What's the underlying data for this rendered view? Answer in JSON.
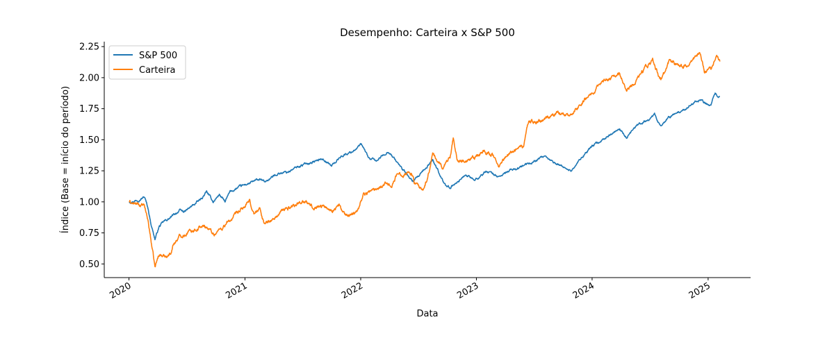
{
  "chart_data": {
    "type": "line",
    "title": "Desempenho: Carteira x S&P 500",
    "xlabel": "Data",
    "ylabel": "Índice (Base = início do período)",
    "xlim": [
      "2019-10-15",
      "2025-05-15"
    ],
    "ylim": [
      0.39,
      2.29
    ],
    "x_ticks": [
      "2020-01-01",
      "2021-01-01",
      "2022-01-01",
      "2023-01-01",
      "2024-01-01",
      "2025-01-01"
    ],
    "x_tick_labels": [
      "2020",
      "2021",
      "2022",
      "2023",
      "2024",
      "2025"
    ],
    "y_ticks": [
      0.5,
      0.75,
      1.0,
      1.25,
      1.5,
      1.75,
      2.0,
      2.25
    ],
    "y_tick_labels": [
      "0.50",
      "0.75",
      "1.00",
      "1.25",
      "1.50",
      "1.75",
      "2.00",
      "2.25"
    ],
    "grid": false,
    "legend_position": "top-left",
    "series": [
      {
        "name": "S&P 500",
        "color": "#1f77b4",
        "points": [
          [
            "2020-01-02",
            1.0
          ],
          [
            "2020-01-20",
            1.01
          ],
          [
            "2020-02-10",
            1.03
          ],
          [
            "2020-02-19",
            1.04
          ],
          [
            "2020-03-01",
            0.95
          ],
          [
            "2020-03-10",
            0.83
          ],
          [
            "2020-03-23",
            0.7
          ],
          [
            "2020-04-05",
            0.8
          ],
          [
            "2020-04-20",
            0.84
          ],
          [
            "2020-05-10",
            0.87
          ],
          [
            "2020-06-08",
            0.93
          ],
          [
            "2020-06-25",
            0.92
          ],
          [
            "2020-07-20",
            0.97
          ],
          [
            "2020-08-15",
            1.02
          ],
          [
            "2020-09-02",
            1.08
          ],
          [
            "2020-09-23",
            1.0
          ],
          [
            "2020-10-12",
            1.06
          ],
          [
            "2020-10-30",
            1.0
          ],
          [
            "2020-11-15",
            1.08
          ],
          [
            "2020-12-15",
            1.12
          ],
          [
            "2021-01-15",
            1.15
          ],
          [
            "2021-02-15",
            1.18
          ],
          [
            "2021-03-05",
            1.16
          ],
          [
            "2021-04-15",
            1.23
          ],
          [
            "2021-05-15",
            1.24
          ],
          [
            "2021-06-15",
            1.28
          ],
          [
            "2021-07-15",
            1.31
          ],
          [
            "2021-08-15",
            1.33
          ],
          [
            "2021-09-02",
            1.35
          ],
          [
            "2021-10-01",
            1.29
          ],
          [
            "2021-11-01",
            1.37
          ],
          [
            "2021-12-01",
            1.4
          ],
          [
            "2022-01-03",
            1.46
          ],
          [
            "2022-01-27",
            1.35
          ],
          [
            "2022-02-20",
            1.33
          ],
          [
            "2022-03-29",
            1.41
          ],
          [
            "2022-05-20",
            1.24
          ],
          [
            "2022-06-16",
            1.16
          ],
          [
            "2022-07-20",
            1.25
          ],
          [
            "2022-08-16",
            1.34
          ],
          [
            "2022-09-30",
            1.11
          ],
          [
            "2022-10-12",
            1.12
          ],
          [
            "2022-11-30",
            1.22
          ],
          [
            "2022-12-28",
            1.17
          ],
          [
            "2023-02-02",
            1.25
          ],
          [
            "2023-03-13",
            1.2
          ],
          [
            "2023-04-15",
            1.25
          ],
          [
            "2023-06-01",
            1.29
          ],
          [
            "2023-07-31",
            1.36
          ],
          [
            "2023-08-31",
            1.32
          ],
          [
            "2023-10-27",
            1.25
          ],
          [
            "2023-11-30",
            1.36
          ],
          [
            "2023-12-29",
            1.44
          ],
          [
            "2024-02-15",
            1.52
          ],
          [
            "2024-03-28",
            1.58
          ],
          [
            "2024-04-19",
            1.51
          ],
          [
            "2024-05-20",
            1.61
          ],
          [
            "2024-07-16",
            1.7
          ],
          [
            "2024-08-05",
            1.6
          ],
          [
            "2024-08-30",
            1.68
          ],
          [
            "2024-10-15",
            1.74
          ],
          [
            "2024-12-06",
            1.83
          ],
          [
            "2024-12-20",
            1.8
          ],
          [
            "2025-01-10",
            1.78
          ],
          [
            "2025-01-23",
            1.87
          ],
          [
            "2025-02-07",
            1.85
          ]
        ]
      },
      {
        "name": "Carteira",
        "color": "#ff7f0e",
        "points": [
          [
            "2020-01-02",
            1.0
          ],
          [
            "2020-01-20",
            0.98
          ],
          [
            "2020-02-10",
            0.97
          ],
          [
            "2020-02-19",
            0.96
          ],
          [
            "2020-03-01",
            0.85
          ],
          [
            "2020-03-10",
            0.7
          ],
          [
            "2020-03-23",
            0.47
          ],
          [
            "2020-04-05",
            0.58
          ],
          [
            "2020-04-20",
            0.56
          ],
          [
            "2020-05-10",
            0.58
          ],
          [
            "2020-05-20",
            0.66
          ],
          [
            "2020-06-08",
            0.72
          ],
          [
            "2020-07-15",
            0.77
          ],
          [
            "2020-08-15",
            0.8
          ],
          [
            "2020-09-02",
            0.8
          ],
          [
            "2020-09-25",
            0.74
          ],
          [
            "2020-10-20",
            0.79
          ],
          [
            "2020-11-15",
            0.85
          ],
          [
            "2020-12-15",
            0.92
          ],
          [
            "2021-01-15",
            1.0
          ],
          [
            "2021-01-30",
            0.9
          ],
          [
            "2021-02-15",
            0.95
          ],
          [
            "2021-03-05",
            0.82
          ],
          [
            "2021-04-01",
            0.86
          ],
          [
            "2021-05-01",
            0.93
          ],
          [
            "2021-06-01",
            0.97
          ],
          [
            "2021-07-01",
            1.01
          ],
          [
            "2021-08-01",
            0.96
          ],
          [
            "2021-09-01",
            0.97
          ],
          [
            "2021-10-01",
            0.93
          ],
          [
            "2021-10-25",
            0.97
          ],
          [
            "2021-11-15",
            0.88
          ],
          [
            "2021-12-20",
            0.93
          ],
          [
            "2022-01-10",
            1.06
          ],
          [
            "2022-02-15",
            1.1
          ],
          [
            "2022-03-15",
            1.15
          ],
          [
            "2022-04-10",
            1.14
          ],
          [
            "2022-04-26",
            1.22
          ],
          [
            "2022-06-10",
            1.24
          ],
          [
            "2022-06-20",
            1.15
          ],
          [
            "2022-07-15",
            1.08
          ],
          [
            "2022-08-01",
            1.2
          ],
          [
            "2022-08-16",
            1.38
          ],
          [
            "2022-09-15",
            1.28
          ],
          [
            "2022-10-10",
            1.36
          ],
          [
            "2022-10-20",
            1.52
          ],
          [
            "2022-11-01",
            1.35
          ],
          [
            "2022-11-30",
            1.32
          ],
          [
            "2022-12-28",
            1.35
          ],
          [
            "2023-01-20",
            1.41
          ],
          [
            "2023-02-20",
            1.38
          ],
          [
            "2023-03-13",
            1.28
          ],
          [
            "2023-04-15",
            1.4
          ],
          [
            "2023-05-30",
            1.45
          ],
          [
            "2023-06-15",
            1.65
          ],
          [
            "2023-07-15",
            1.64
          ],
          [
            "2023-08-15",
            1.68
          ],
          [
            "2023-09-15",
            1.72
          ],
          [
            "2023-10-27",
            1.7
          ],
          [
            "2023-11-30",
            1.8
          ],
          [
            "2023-12-29",
            1.88
          ],
          [
            "2024-02-15",
            1.98
          ],
          [
            "2024-03-28",
            2.05
          ],
          [
            "2024-04-19",
            1.9
          ],
          [
            "2024-05-20",
            1.98
          ],
          [
            "2024-07-10",
            2.14
          ],
          [
            "2024-08-05",
            1.98
          ],
          [
            "2024-09-01",
            2.14
          ],
          [
            "2024-10-15",
            2.08
          ],
          [
            "2024-12-06",
            2.2
          ],
          [
            "2024-12-20",
            2.05
          ],
          [
            "2025-01-10",
            2.08
          ],
          [
            "2025-01-28",
            2.16
          ],
          [
            "2025-02-07",
            2.13
          ]
        ]
      }
    ]
  }
}
